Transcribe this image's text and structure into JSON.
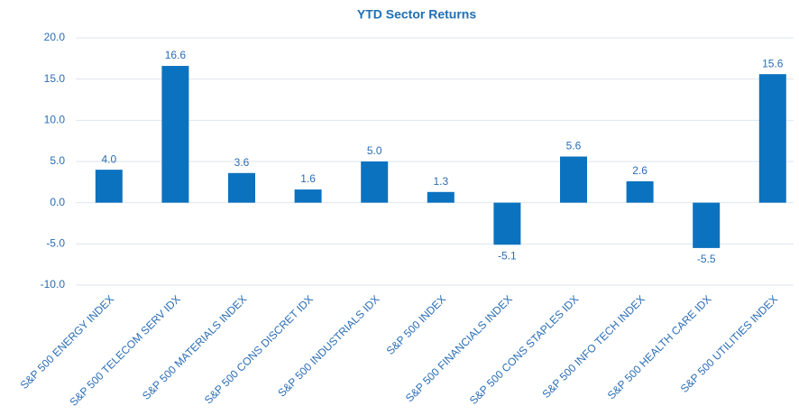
{
  "chart_data": {
    "type": "bar",
    "title": "YTD Sector Returns",
    "categories": [
      "S&P 500 ENERGY INDEX",
      "S&P 500 TELECOM SERV IDX",
      "S&P 500 MATERIALS INDEX",
      "S&P 500 CONS DISCRET IDX",
      "S&P 500 INDUSTRIALS IDX",
      "S&P 500 INDEX",
      "S&P 500 FINANCIALS INDEX",
      "S&P 500 CONS STAPLES IDX",
      "S&P 500 INFO TECH INDEX",
      "S&P 500 HEALTH CARE IDX",
      "S&P 500 UTILITIES INDEX"
    ],
    "values": [
      4.0,
      16.6,
      3.6,
      1.6,
      5.0,
      1.3,
      -5.1,
      5.6,
      2.6,
      -5.5,
      15.6
    ],
    "value_labels": [
      "4.0",
      "16.6",
      "3.6",
      "1.6",
      "5.0",
      "1.3",
      "-5.1",
      "5.6",
      "2.6",
      "-5.5",
      "15.6"
    ],
    "color": "#0b72c0",
    "ylim": [
      -10,
      20
    ],
    "yticks": [
      {
        "value": -10,
        "label": "-10.0"
      },
      {
        "value": -5,
        "label": "-5.0"
      },
      {
        "value": 0,
        "label": "0.0"
      },
      {
        "value": 5,
        "label": "5.0"
      },
      {
        "value": 10,
        "label": "10.0"
      },
      {
        "value": 15,
        "label": "15.0"
      },
      {
        "value": 20,
        "label": "20.0"
      }
    ],
    "grid": true
  }
}
